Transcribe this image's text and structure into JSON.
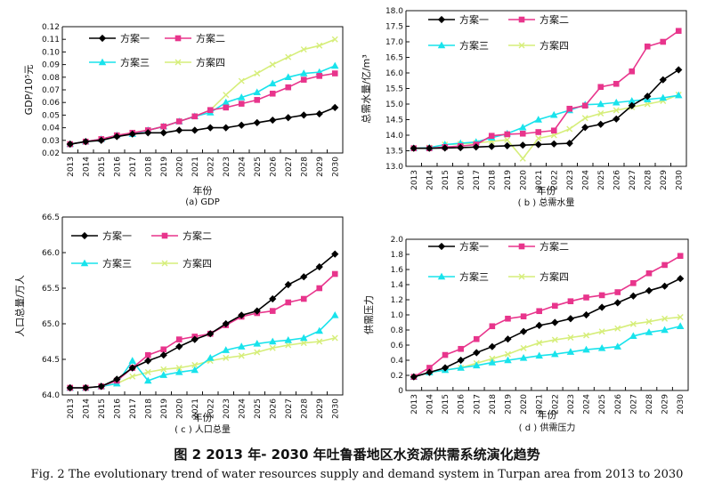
{
  "figure_caption_cn": "图 2   2013 年- 2030 年吐鲁番地区水资源供需系统演化趋势",
  "figure_caption_en": "Fig. 2   The evolutionary trend of water resources supply and demand system in Turpan area from 2013 to 2030",
  "series_names": [
    "方案一",
    "方案二",
    "方案三",
    "方案四"
  ],
  "series_colors": [
    "#000000",
    "#e8358c",
    "#19e3ec",
    "#d6ee7a"
  ],
  "series_markers": [
    "diamond",
    "square",
    "triangle",
    "x"
  ],
  "chart_data": [
    {
      "id": "a",
      "type": "line",
      "caption": "(a) GDP",
      "xlabel": "年份",
      "ylabel": "GDP/10⁵元",
      "x": [
        2013,
        2014,
        2015,
        2016,
        2017,
        2018,
        2019,
        2020,
        2021,
        2022,
        2023,
        2024,
        2025,
        2026,
        2027,
        2028,
        2029,
        2030
      ],
      "ylim": [
        0.02,
        0.12
      ],
      "yticks": [
        "0.02",
        "0.03",
        "0.04",
        "0.05",
        "0.06",
        "0.07",
        "0.08",
        "0.09",
        "0.10",
        "0.11",
        "0.12"
      ],
      "grid": false,
      "legend": "top-left",
      "series": [
        {
          "name": "方案一",
          "values": [
            0.027,
            0.029,
            0.03,
            0.033,
            0.035,
            0.036,
            0.036,
            0.038,
            0.038,
            0.04,
            0.04,
            0.042,
            0.044,
            0.046,
            0.048,
            0.05,
            0.051,
            0.056
          ]
        },
        {
          "name": "方案二",
          "values": [
            0.027,
            0.029,
            0.031,
            0.034,
            0.036,
            0.038,
            0.041,
            0.045,
            0.049,
            0.054,
            0.056,
            0.059,
            0.062,
            0.067,
            0.072,
            0.078,
            0.081,
            0.083
          ]
        },
        {
          "name": "方案三",
          "values": [
            0.027,
            0.029,
            0.031,
            0.034,
            0.035,
            0.038,
            0.041,
            0.045,
            0.049,
            0.052,
            0.06,
            0.064,
            0.068,
            0.075,
            0.08,
            0.083,
            0.084,
            0.089
          ]
        },
        {
          "name": "方案四",
          "values": [
            0.027,
            0.029,
            0.031,
            0.034,
            0.036,
            0.038,
            0.041,
            0.045,
            0.049,
            0.054,
            0.066,
            0.077,
            0.083,
            0.09,
            0.096,
            0.102,
            0.105,
            0.11
          ]
        }
      ]
    },
    {
      "id": "b",
      "type": "line",
      "caption": "( b ) 总需水量",
      "xlabel": "年份",
      "ylabel": "总需水量/亿/m³",
      "x": [
        2013,
        2014,
        2015,
        2016,
        2017,
        2018,
        2019,
        2020,
        2021,
        2022,
        2023,
        2024,
        2025,
        2026,
        2027,
        2028,
        2029,
        2030
      ],
      "ylim": [
        13.0,
        18.0
      ],
      "yticks": [
        "13.0",
        "13.5",
        "14.0",
        "14.5",
        "15.0",
        "15.5",
        "16.0",
        "16.5",
        "17.0",
        "17.5",
        "18.0"
      ],
      "grid": false,
      "legend": "top-center",
      "series": [
        {
          "name": "方案一",
          "values": [
            13.58,
            13.58,
            13.59,
            13.6,
            13.62,
            13.64,
            13.66,
            13.68,
            13.7,
            13.72,
            13.74,
            14.25,
            14.35,
            14.52,
            14.95,
            15.25,
            15.78,
            16.1
          ]
        },
        {
          "name": "方案二",
          "values": [
            13.58,
            13.58,
            13.62,
            13.65,
            13.7,
            13.98,
            14.03,
            14.05,
            14.1,
            14.15,
            14.85,
            14.95,
            15.55,
            15.65,
            16.05,
            16.85,
            17.0,
            17.35
          ]
        },
        {
          "name": "方案三",
          "values": [
            13.58,
            13.6,
            13.7,
            13.74,
            13.78,
            13.92,
            14.05,
            14.25,
            14.5,
            14.65,
            14.8,
            14.98,
            15.0,
            15.05,
            15.1,
            15.15,
            15.2,
            15.28
          ]
        },
        {
          "name": "方案四",
          "values": [
            13.58,
            13.6,
            13.7,
            13.72,
            13.75,
            13.8,
            13.85,
            13.25,
            13.9,
            14.0,
            14.2,
            14.55,
            14.7,
            14.8,
            14.9,
            15.0,
            15.1,
            15.3
          ]
        }
      ]
    },
    {
      "id": "c",
      "type": "line",
      "caption": "( c ) 人口总量",
      "xlabel": "年份",
      "ylabel": "人口总量/万人",
      "x": [
        2013,
        2014,
        2015,
        2016,
        2017,
        2018,
        2019,
        2020,
        2021,
        2022,
        2023,
        2024,
        2025,
        2026,
        2027,
        2028,
        2029,
        2030
      ],
      "ylim": [
        64.0,
        66.5
      ],
      "yticks": [
        "64.0",
        "64.5",
        "65.0",
        "65.5",
        "66.0",
        "66.5"
      ],
      "grid": false,
      "legend": "top-left",
      "series": [
        {
          "name": "方案一",
          "values": [
            64.1,
            64.1,
            64.12,
            64.22,
            64.38,
            64.48,
            64.56,
            64.68,
            64.78,
            64.86,
            65.0,
            65.12,
            65.18,
            65.35,
            65.55,
            65.66,
            65.8,
            65.98
          ]
        },
        {
          "name": "方案二",
          "values": [
            64.1,
            64.1,
            64.12,
            64.2,
            64.38,
            64.56,
            64.64,
            64.78,
            64.82,
            64.86,
            64.98,
            65.1,
            65.15,
            65.18,
            65.3,
            65.35,
            65.5,
            65.7
          ]
        },
        {
          "name": "方案三",
          "values": [
            64.1,
            64.1,
            64.12,
            64.16,
            64.48,
            64.2,
            64.28,
            64.32,
            64.35,
            64.52,
            64.63,
            64.68,
            64.72,
            64.75,
            64.77,
            64.8,
            64.9,
            65.12
          ]
        },
        {
          "name": "方案四",
          "values": [
            64.1,
            64.1,
            64.12,
            64.16,
            64.26,
            64.32,
            64.36,
            64.38,
            64.42,
            64.48,
            64.52,
            64.55,
            64.6,
            64.66,
            64.7,
            64.73,
            64.75,
            64.8
          ]
        }
      ]
    },
    {
      "id": "d",
      "type": "line",
      "caption": "( d ) 供需压力",
      "xlabel": "年份",
      "ylabel": "供需压力",
      "x": [
        2013,
        2014,
        2015,
        2016,
        2017,
        2018,
        2019,
        2020,
        2021,
        2022,
        2023,
        2024,
        2025,
        2026,
        2027,
        2028,
        2029,
        2030
      ],
      "ylim": [
        0.0,
        2.0
      ],
      "yticks": [
        "0",
        "0.2",
        "0.4",
        "0.6",
        "0.8",
        "1.0",
        "1.2",
        "1.4",
        "1.6",
        "1.8",
        "2.0"
      ],
      "grid": false,
      "legend": "top-left",
      "series": [
        {
          "name": "方案一",
          "values": [
            0.18,
            0.24,
            0.3,
            0.4,
            0.5,
            0.58,
            0.68,
            0.78,
            0.86,
            0.9,
            0.95,
            1.0,
            1.1,
            1.16,
            1.25,
            1.32,
            1.38,
            1.48
          ]
        },
        {
          "name": "方案二",
          "values": [
            0.18,
            0.3,
            0.47,
            0.55,
            0.68,
            0.85,
            0.95,
            0.98,
            1.05,
            1.12,
            1.18,
            1.23,
            1.26,
            1.3,
            1.42,
            1.55,
            1.66,
            1.78
          ]
        },
        {
          "name": "方案三",
          "values": [
            0.18,
            0.24,
            0.27,
            0.3,
            0.33,
            0.37,
            0.4,
            0.43,
            0.46,
            0.48,
            0.51,
            0.54,
            0.56,
            0.58,
            0.72,
            0.77,
            0.8,
            0.85
          ]
        },
        {
          "name": "方案四",
          "values": [
            0.18,
            0.24,
            0.27,
            0.3,
            0.36,
            0.42,
            0.48,
            0.56,
            0.63,
            0.67,
            0.7,
            0.73,
            0.78,
            0.82,
            0.88,
            0.91,
            0.95,
            0.97
          ]
        }
      ]
    }
  ]
}
